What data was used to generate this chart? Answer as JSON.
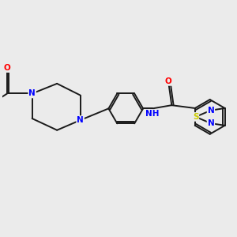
{
  "background_color": "#EBEBEB",
  "bond_color": "#1a1a1a",
  "atom_colors": {
    "N": "#0000FF",
    "O": "#FF0000",
    "S": "#CCCC00",
    "H": "#008080",
    "C": "#1a1a1a"
  },
  "figsize": [
    3.0,
    3.0
  ],
  "dpi": 100,
  "xlim": [
    -3.2,
    3.8
  ],
  "ylim": [
    -2.5,
    2.5
  ]
}
